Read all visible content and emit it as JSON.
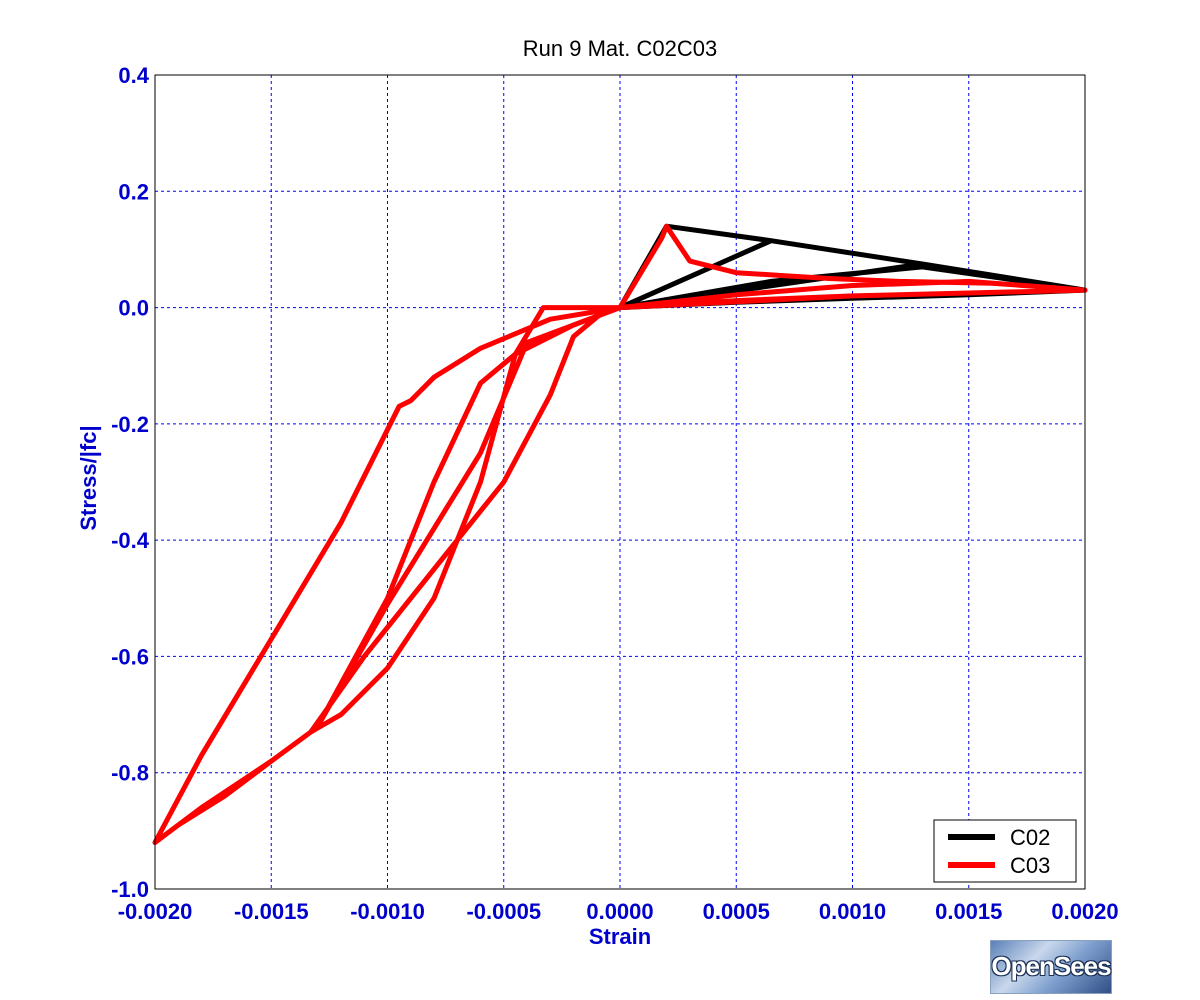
{
  "chart_data": {
    "type": "line",
    "title": "Run 9    Mat. C02C03",
    "xlabel": "Strain",
    "ylabel": "Stress/|fc|",
    "xlim": [
      -0.002,
      0.002
    ],
    "ylim": [
      -1.0,
      0.4
    ],
    "xticks": [
      -0.002,
      -0.0015,
      -0.001,
      -0.0005,
      0.0,
      0.0005,
      0.001,
      0.0015,
      0.002
    ],
    "xtick_labels": [
      "-0.0020",
      "-0.0015",
      "-0.0010",
      "-0.0005",
      "0.0000",
      "0.0005",
      "0.0010",
      "0.0015",
      "0.0020"
    ],
    "yticks": [
      0.4,
      0.2,
      0.0,
      -0.2,
      -0.4,
      -0.6,
      -0.8,
      -1.0
    ],
    "ytick_labels": [
      "0.4",
      "0.2",
      "0.0",
      "-0.2",
      "-0.4",
      "-0.6",
      "-0.8",
      "-1.0"
    ],
    "grid": true,
    "legend_position": "bottom-right",
    "series": [
      {
        "name": "C02",
        "color": "#000000",
        "x": [
          0.0,
          0.0002,
          0.00065,
          0.0,
          0.0002,
          0.00065,
          0.0013,
          0.0,
          0.0002,
          0.00065,
          0.0013,
          0.002,
          0.0015,
          0.001,
          0.0005,
          0.0,
          0.00065,
          0.0013,
          0.002
        ],
        "y": [
          0.0,
          0.14,
          0.115,
          0.0,
          0.14,
          0.115,
          0.075,
          0.0,
          0.14,
          0.115,
          0.075,
          0.03,
          0.022,
          0.016,
          0.009,
          0.0,
          0.045,
          0.07,
          0.03
        ]
      },
      {
        "name": "C03",
        "color": "#ff0000",
        "x": [
          0.0,
          0.00018,
          0.0002,
          0.0003,
          0.0005,
          0.0007,
          0.0009,
          0.0012,
          0.0016,
          0.002,
          0.0015,
          0.001,
          0.0005,
          0.0,
          -0.0003,
          -0.0006,
          -0.0008,
          -0.0009,
          -0.00095,
          -0.0012,
          -0.0015,
          -0.0018,
          -0.002,
          -0.0018,
          -0.0015,
          -0.00133,
          -0.0011,
          -0.0008,
          -0.0005,
          -0.0003,
          -0.0002,
          -5e-05,
          0.0,
          -0.0004,
          -0.0006,
          -0.001,
          -0.0013,
          -0.001,
          -0.0008,
          -0.0006,
          -0.00045,
          -0.0002,
          0.0,
          0.0005,
          0.001,
          0.0015,
          0.002,
          0.0015,
          0.001,
          0.0005,
          0.0,
          -0.00033,
          -0.00045,
          -0.0006,
          -0.0008,
          -0.001,
          -0.0012,
          -0.00133,
          -0.0015,
          -0.0017,
          -0.0019,
          -0.002
        ],
        "y": [
          0.0,
          0.12,
          0.14,
          0.08,
          0.06,
          0.055,
          0.05,
          0.045,
          0.042,
          0.03,
          0.025,
          0.02,
          0.012,
          0.0,
          -0.02,
          -0.07,
          -0.12,
          -0.16,
          -0.17,
          -0.37,
          -0.57,
          -0.77,
          -0.92,
          -0.86,
          -0.78,
          -0.73,
          -0.6,
          -0.45,
          -0.3,
          -0.15,
          -0.05,
          0.0,
          0.0,
          -0.06,
          -0.25,
          -0.51,
          -0.72,
          -0.5,
          -0.3,
          -0.13,
          -0.08,
          -0.03,
          0.0,
          0.022,
          0.038,
          0.045,
          0.03,
          0.025,
          0.02,
          0.01,
          0.0,
          0.0,
          -0.08,
          -0.3,
          -0.5,
          -0.62,
          -0.7,
          -0.73,
          -0.78,
          -0.84,
          -0.89,
          -0.92
        ]
      }
    ]
  },
  "legend": {
    "entries": [
      {
        "label": "C02",
        "color": "#000000"
      },
      {
        "label": "C03",
        "color": "#ff0000"
      }
    ]
  },
  "logo": {
    "text": "OpenSees"
  },
  "colors": {
    "axis_text": "#0000cc",
    "grid": "#0000ff"
  }
}
